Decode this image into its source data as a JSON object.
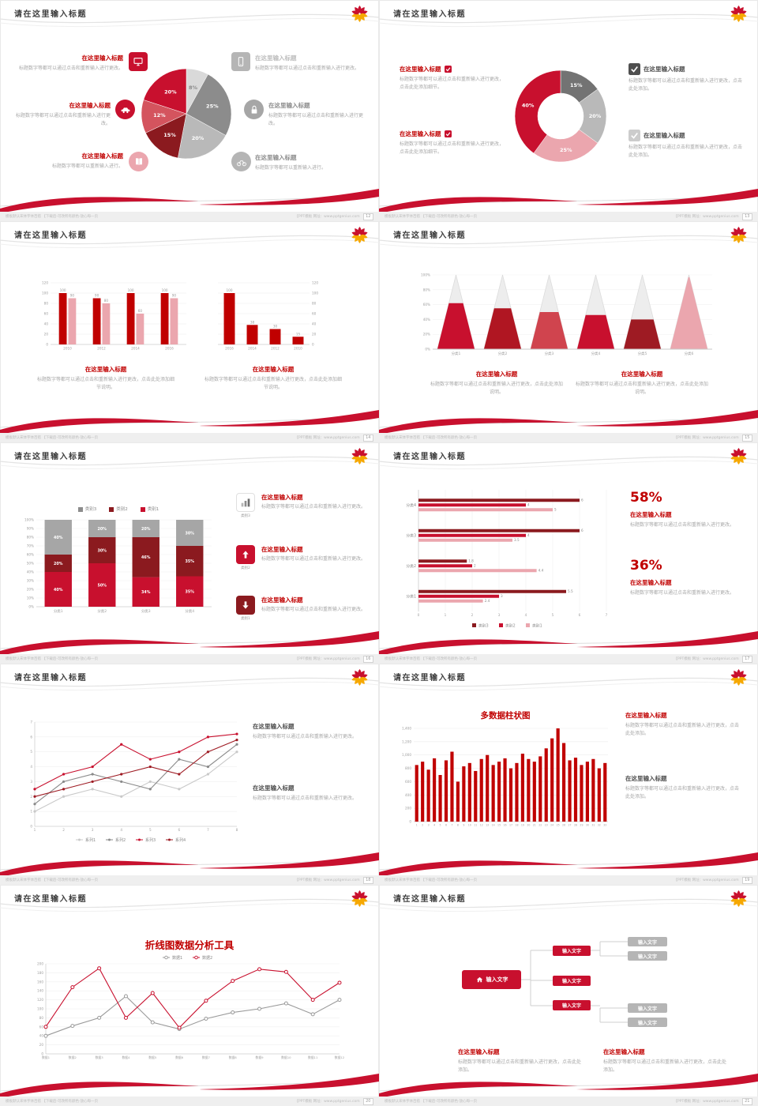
{
  "colors": {
    "accent": "#c8102e",
    "dark_red": "#8b1a1f",
    "pink": "#eba6ae",
    "gray_dark": "#595959",
    "gray": "#a6a6a6",
    "gray_light": "#d9d9d9",
    "logo_red": "#c8102e",
    "logo_orange": "#f6a800"
  },
  "common": {
    "footer_left": "模板默认宋体字体百搭 【下载后-可改所有颜色-放心每一页",
    "footer_right": "【PPT模板 网址：www.pptgenius.com"
  },
  "slides": [
    {
      "page": "12",
      "title": "请在这里输入标题",
      "blocks": [
        {
          "title": "在这里输入标题",
          "body": "标题数字等都可以通过点击和重新输入进行更改。"
        },
        {
          "title": "在这里输入标题",
          "body": "标题数字等都可以通过点击和重新输入进行更改。"
        },
        {
          "title": "在这里输入标题",
          "body": "标题数字等都可以重新输入进行。"
        },
        {
          "title": "在这里输入标题",
          "body": "标题数字等都可以通过点击和重新输入进行更改。"
        },
        {
          "title": "在这里输入标题",
          "body": "标题数字等都可以通过点击和重新输入进行更改。"
        },
        {
          "title": "在这里输入标题",
          "body": "标题数字等都可以重新输入进行。"
        }
      ],
      "chart": {
        "type": "pie",
        "r": 57,
        "slices": [
          {
            "value": 8,
            "label": "8%",
            "color": "#d9d9d9",
            "text": "#8a8a8a"
          },
          {
            "value": 25,
            "label": "25%",
            "color": "#8c8c8c"
          },
          {
            "value": 20,
            "label": "20%",
            "color": "#b9b9b9"
          },
          {
            "value": 15,
            "label": "15%",
            "color": "#8b1a1f"
          },
          {
            "value": 12,
            "label": "12%",
            "color": "#d4545e"
          },
          {
            "value": 20,
            "label": "20%",
            "color": "#c8102e"
          }
        ]
      }
    },
    {
      "page": "13",
      "title": "请在这里输入标题",
      "blocks": [
        {
          "title": "在这里输入标题",
          "body": "标题数字等都可以通过点击和重新输入进行更改，点击此处添加细节。"
        },
        {
          "title": "在这里输入标题",
          "body": "标题数字等都可以通过点击和重新输入进行更改，点击此处添加细节。"
        },
        {
          "title": "在这里输入标题",
          "body": "标题数字等都可以通过点击和重新输入进行更改，点击此处添加。"
        },
        {
          "title": "在这里输入标题",
          "body": "标题数字等都可以通过点击和重新输入进行更改，点击此处添加。"
        }
      ],
      "chart": {
        "type": "pie",
        "r": 58,
        "inner": 29,
        "slices": [
          {
            "value": 15,
            "label": "15%",
            "color": "#737373"
          },
          {
            "value": 20,
            "label": "20%",
            "color": "#b9b9b9"
          },
          {
            "value": 25,
            "label": "25%",
            "color": "#eba6ae"
          },
          {
            "value": 40,
            "label": "40%",
            "color": "#c8102e"
          }
        ]
      }
    },
    {
      "page": "14",
      "title": "请在这里输入标题",
      "blocks": [
        {
          "title": "在这里输入标题",
          "body": "标题数字等都可以通过点击和重新输入进行更改，点击此处添加细节说明。"
        },
        {
          "title": "在这里输入标题",
          "body": "标题数字等都可以通过点击和重新输入进行更改，点击此处添加细节说明。"
        }
      ],
      "charts": [
        {
          "type": "vbar",
          "categories": [
            "2010",
            "2012",
            "2014",
            "2016"
          ],
          "series": [
            {
              "name": "系列1",
              "color": "#c00000",
              "values": [
                100,
                90,
                100,
                100
              ]
            },
            {
              "name": "系列2",
              "color": "#eba6ae",
              "values": [
                90,
                80,
                60,
                90
              ]
            }
          ],
          "ymax": 120,
          "axis": "left",
          "value_labels": true,
          "yticks": [
            {
              "v": 0,
              "label": "0"
            },
            {
              "v": 20,
              "label": "20"
            },
            {
              "v": 40,
              "label": "40"
            },
            {
              "v": 60,
              "label": "60"
            },
            {
              "v": 80,
              "label": "80"
            },
            {
              "v": 100,
              "label": "100"
            },
            {
              "v": 120,
              "label": "120"
            }
          ]
        },
        {
          "type": "vbar",
          "categories": [
            "2016",
            "2014",
            "2012",
            "2010"
          ],
          "series": [
            {
              "name": "系列1",
              "color": "#c00000",
              "values": [
                100,
                38,
                30,
                15
              ]
            }
          ],
          "ymax": 120,
          "axis": "right",
          "value_labels": true,
          "yticks": [
            {
              "v": 0,
              "label": "0"
            },
            {
              "v": 20,
              "label": "20"
            },
            {
              "v": 40,
              "label": "40"
            },
            {
              "v": 60,
              "label": "60"
            },
            {
              "v": 80,
              "label": "80"
            },
            {
              "v": 100,
              "label": "100"
            },
            {
              "v": 120,
              "label": "120"
            }
          ]
        }
      ]
    },
    {
      "page": "15",
      "title": "请在这里输入标题",
      "blocks": [
        {
          "title": "在这里输入标题",
          "body": "标题数字等都可以通过点击和重新输入进行更改，点击此处添加说明。"
        },
        {
          "title": "在这里输入标题",
          "body": "标题数字等都可以通过点击和重新输入进行更改，点击此处添加说明。"
        }
      ],
      "chart": {
        "type": "pyramid",
        "categories": [
          "分类1",
          "分类2",
          "分类3",
          "分类4",
          "分类5",
          "分类6"
        ],
        "items": [
          {
            "fill": 0.62,
            "color": "#c8102e"
          },
          {
            "fill": 0.55,
            "color": "#b01622"
          },
          {
            "fill": 0.5,
            "color": "#d0444e"
          },
          {
            "fill": 0.46,
            "color": "#c8102e"
          },
          {
            "fill": 0.4,
            "color": "#9e1b23"
          },
          {
            "fill": 0.97,
            "color": "#eba6ae"
          }
        ],
        "yticks": [
          {
            "v": 0,
            "label": "0%"
          },
          {
            "v": 20,
            "label": "20%"
          },
          {
            "v": 40,
            "label": "40%"
          },
          {
            "v": 60,
            "label": "60%"
          },
          {
            "v": 80,
            "label": "80%"
          },
          {
            "v": 100,
            "label": "100%"
          }
        ]
      }
    },
    {
      "page": "16",
      "title": "请在这里输入标题",
      "legend": [
        {
          "label": "类别3",
          "color": "#8c8c8c"
        },
        {
          "label": "类别2",
          "color": "#8b1a1f"
        },
        {
          "label": "类别1",
          "color": "#c8102e"
        }
      ],
      "rows": [
        {
          "caption": "类别3",
          "title": "在这里输入标题",
          "body": "标题数字等都可以通过点击和重新输入进行更改。"
        },
        {
          "caption": "类别2",
          "title": "在这里输入标题",
          "body": "标题数字等都可以通过点击和重新输入进行更改。"
        },
        {
          "caption": "类别1",
          "title": "在这里输入标题",
          "body": "标题数字等都可以通过点击和重新输入进行更改。"
        }
      ],
      "chart": {
        "type": "stacked",
        "categories": [
          "分类1",
          "分类2",
          "分类3",
          "分类4"
        ],
        "series": [
          {
            "name": "类别1",
            "color": "#c8102e",
            "values": [
              40,
              50,
              34,
              35
            ]
          },
          {
            "name": "类别2",
            "color": "#8b1a1f",
            "values": [
              20,
              30,
              46,
              35
            ]
          },
          {
            "name": "类别3",
            "color": "#a6a6a6",
            "values": [
              40,
              20,
              20,
              30
            ]
          }
        ],
        "yticks": [
          {
            "v": 0,
            "label": "0%"
          },
          {
            "v": 10,
            "label": "10%"
          },
          {
            "v": 20,
            "label": "20%"
          },
          {
            "v": 30,
            "label": "30%"
          },
          {
            "v": 40,
            "label": "40%"
          },
          {
            "v": 50,
            "label": "50%"
          },
          {
            "v": 60,
            "label": "60%"
          },
          {
            "v": 70,
            "label": "70%"
          },
          {
            "v": 80,
            "label": "80%"
          },
          {
            "v": 90,
            "label": "90%"
          },
          {
            "v": 100,
            "label": "100%"
          }
        ]
      }
    },
    {
      "page": "17",
      "title": "请在这里输入标题",
      "stats": [
        {
          "pct": "58%",
          "title": "在这里输入标题",
          "body": "标题数字等都可以通过点击和重新输入进行更改。"
        },
        {
          "pct": "36%",
          "title": "在这里输入标题",
          "body": "标题数字等都可以通过点击和重新输入进行更改。"
        }
      ],
      "chart": {
        "type": "hbar",
        "categories": [
          "分类4",
          "分类3",
          "分类2",
          "分类1"
        ],
        "series": [
          {
            "name": "类别3",
            "color": "#8b1a1f"
          },
          {
            "name": "类别2",
            "color": "#c8102e"
          },
          {
            "name": "类别1",
            "color": "#eba6ae"
          }
        ],
        "values": [
          [
            6,
            4,
            5
          ],
          [
            6,
            4,
            3.5
          ],
          [
            1.8,
            2,
            4.4
          ],
          [
            5.5,
            3,
            2.4
          ]
        ],
        "xmax": 7,
        "xticks": [
          "0",
          "1",
          "2",
          "3",
          "4",
          "5",
          "6",
          "7"
        ],
        "legend": [
          {
            "label": "类别3",
            "color": "#8b1a1f"
          },
          {
            "label": "类别2",
            "color": "#c8102e"
          },
          {
            "label": "类别1",
            "color": "#eba6ae"
          }
        ]
      }
    },
    {
      "page": "18",
      "title": "请在这里输入标题",
      "blocks": [
        {
          "title": "在这里输入标题",
          "body": "标题数字等都可以通过点击和重新输入进行更改。"
        },
        {
          "title": "在这里输入标题",
          "body": "标题数字等都可以通过点击和重新输入进行更改。"
        }
      ],
      "chart": {
        "type": "line",
        "x_labels": [
          "1",
          "2",
          "3",
          "4",
          "5",
          "6",
          "7",
          "8"
        ],
        "ymax": 7,
        "yticks": [
          {
            "v": 0,
            "label": "0"
          },
          {
            "v": 1,
            "label": "1"
          },
          {
            "v": 2,
            "label": "2"
          },
          {
            "v": 3,
            "label": "3"
          },
          {
            "v": 4,
            "label": "4"
          },
          {
            "v": 5,
            "label": "5"
          },
          {
            "v": 6,
            "label": "6"
          },
          {
            "v": 7,
            "label": "7"
          }
        ],
        "series": [
          {
            "name": "系列1",
            "color": "#c9c9c9",
            "values": [
              1,
              2,
              2.5,
              2,
              3,
              2.5,
              3.5,
              5
            ],
            "marker": "dot"
          },
          {
            "name": "系列2",
            "color": "#8a8a8a",
            "values": [
              1.5,
              3,
              3.5,
              3,
              2.5,
              4.5,
              4,
              5.5
            ],
            "marker": "dot"
          },
          {
            "name": "系列3",
            "color": "#c8102e",
            "values": [
              2.5,
              3.5,
              4,
              5.5,
              4.5,
              5,
              6,
              6.2
            ],
            "marker": "dot"
          },
          {
            "name": "系列4",
            "color": "#9e1b23",
            "values": [
              2,
              2.5,
              3,
              3.5,
              4,
              3.5,
              5,
              5.8
            ],
            "marker": "dot"
          }
        ],
        "legend": "bottom"
      }
    },
    {
      "page": "19",
      "title": "请在这里输入标题",
      "chart_title": "多数据柱状图",
      "blocks": [
        {
          "title": "在这里输入标题",
          "body": "标题数字等都可以通过点击和重新输入进行更改，点击此处添加。"
        },
        {
          "title": "在这里输入标题",
          "body": "标题数字等都可以通过点击和重新输入进行更改，点击此处添加。"
        }
      ],
      "chart": {
        "type": "vbar",
        "categories": [
          "1",
          "2",
          "3",
          "4",
          "5",
          "6",
          "7",
          "8",
          "9",
          "10",
          "11",
          "12",
          "13",
          "14",
          "15",
          "16",
          "17",
          "18",
          "19",
          "20",
          "21",
          "22",
          "23",
          "24",
          "25",
          "26",
          "27",
          "28",
          "29",
          "30",
          "31",
          "32",
          "33"
        ],
        "series": [
          {
            "name": "数据",
            "color": "#c00000",
            "values": [
              850,
              900,
              780,
              950,
              700,
              920,
              1050,
              600,
              830,
              880,
              760,
              940,
              1000,
              850,
              900,
              950,
              800,
              880,
              1020,
              940,
              900,
              980,
              1100,
              1250,
              1400,
              1180,
              920,
              960,
              850,
              900,
              940,
              800,
              880
            ]
          }
        ],
        "ymax": 1400,
        "axis": "left",
        "value_labels": false,
        "bar_ratio": 0.7,
        "xlabel_size": 3.2,
        "yticks": [
          {
            "v": 0,
            "label": "0"
          },
          {
            "v": 200,
            "label": "200"
          },
          {
            "v": 400,
            "label": "400"
          },
          {
            "v": 600,
            "label": "600"
          },
          {
            "v": 800,
            "label": "800"
          },
          {
            "v": 1000,
            "label": "1,000"
          },
          {
            "v": 1200,
            "label": "1,200"
          },
          {
            "v": 1400,
            "label": "1,400"
          }
        ]
      }
    },
    {
      "page": "20",
      "title": "请在这里输入标题",
      "chart_title": "折线图数据分析工具",
      "chart": {
        "type": "line",
        "x_labels": [
          "数据1",
          "数据2",
          "数据3",
          "数据4",
          "数据5",
          "数据6",
          "数据7",
          "数据8",
          "数据9",
          "数据10",
          "数据11",
          "数据12"
        ],
        "ymax": 200,
        "xlabel_size": 3.8,
        "yticks": [
          {
            "v": 0,
            "label": "0"
          },
          {
            "v": 20,
            "label": "20"
          },
          {
            "v": 40,
            "label": "40"
          },
          {
            "v": 60,
            "label": "60"
          },
          {
            "v": 80,
            "label": "80"
          },
          {
            "v": 100,
            "label": "100"
          },
          {
            "v": 120,
            "label": "120"
          },
          {
            "v": 140,
            "label": "140"
          },
          {
            "v": 160,
            "label": "160"
          },
          {
            "v": 180,
            "label": "180"
          },
          {
            "v": 200,
            "label": "200"
          }
        ],
        "series": [
          {
            "name": "数据1",
            "color": "#9a9a9a",
            "values": [
              40,
              62,
              80,
              128,
              70,
              55,
              78,
              92,
              100,
              112,
              88,
              120
            ],
            "marker": "circle"
          },
          {
            "name": "数据2",
            "color": "#c8102e",
            "values": [
              60,
              148,
              190,
              80,
              135,
              58,
              118,
              162,
              188,
              182,
              120,
              158
            ],
            "marker": "circle"
          }
        ],
        "legend": "top"
      }
    },
    {
      "page": "21",
      "title": "请在这里输入标题",
      "diagram": {
        "root": "输入文字",
        "red": [
          "输入文字",
          "输入文字",
          "输入文字"
        ],
        "gray": [
          "输入文字",
          "输入文字",
          "输入文字",
          "输入文字"
        ]
      },
      "blocks": [
        {
          "title": "在这里输入标题",
          "body": "标题数字等都可以通过点击和重新输入进行更改，点击此处添加。"
        },
        {
          "title": "在这里输入标题",
          "body": "标题数字等都可以通过点击和重新输入进行更改，点击此处添加。"
        }
      ]
    }
  ]
}
